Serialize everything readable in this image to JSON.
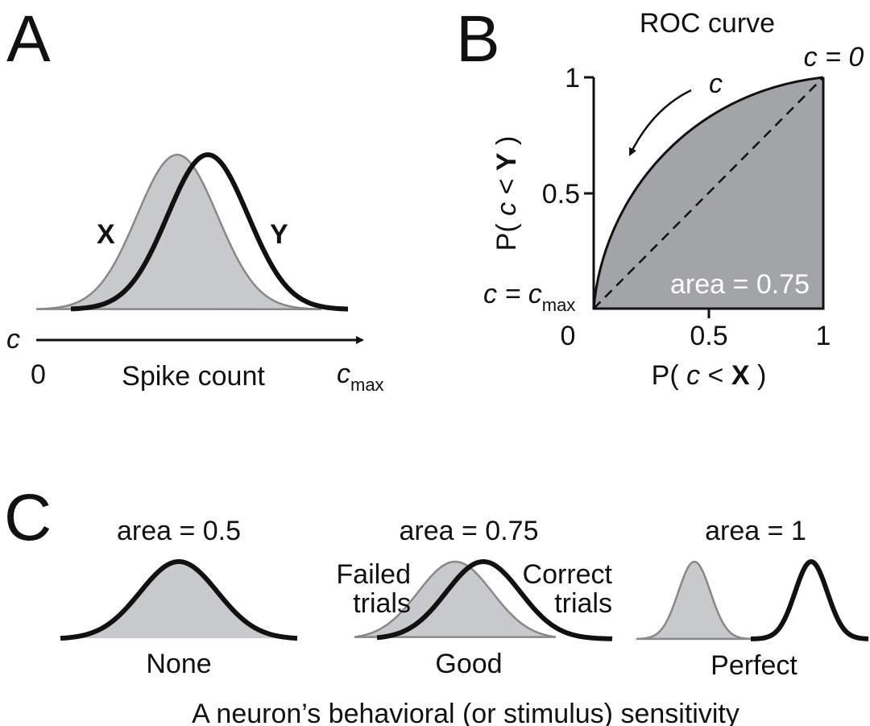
{
  "panel_a": {
    "letter": "A",
    "x_label": "X",
    "y_label": "Y",
    "axis_var": "c",
    "axis_start": "0",
    "axis_title": "Spike count",
    "axis_end": "c",
    "axis_end_sub": "max"
  },
  "panel_b": {
    "letter": "B",
    "title": "ROC curve",
    "yticks": [
      "1",
      "0.5"
    ],
    "xticks": [
      "0",
      "0.5",
      "1"
    ],
    "y_axis_label": [
      "P( ",
      "c",
      " < ",
      "Y",
      " )"
    ],
    "x_axis_label": [
      "P( ",
      "c",
      " < ",
      "X",
      " )"
    ],
    "top_note": "c = 0",
    "bottom_note": "c = c",
    "bottom_note_sub": "max",
    "arrow_label": "c",
    "area_label": "area = 0.75"
  },
  "panel_c": {
    "letter": "C",
    "items": [
      {
        "area": "area = 0.5",
        "label": "None"
      },
      {
        "area": "area = 0.75",
        "label": "Good",
        "left_note": [
          "Failed",
          "trials"
        ],
        "right_note": [
          "Correct",
          "trials"
        ]
      },
      {
        "area": "area = 1",
        "label": "Perfect"
      }
    ],
    "caption": "A neuron’s behavioral (or stimulus) sensitivity"
  }
}
